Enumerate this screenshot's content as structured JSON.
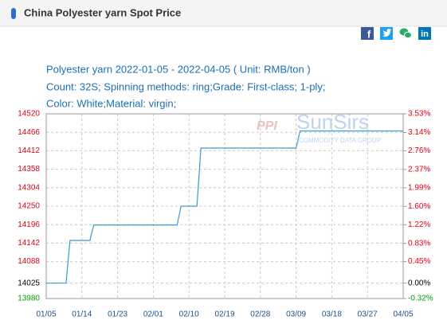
{
  "header": {
    "title": "China Polyester yarn Spot Price",
    "share": [
      "f",
      "in"
    ]
  },
  "watermark": {
    "name": "SunSirs",
    "tagline": "COMMODITY DATA GROUP"
  },
  "chart_data": {
    "type": "line",
    "subtitle": [
      "Polyester yarn 2022-01-05 - 2022-04-05    ( Unit: RMB/ton )",
      "Count: 32S; Spinning methods: ring;Grade: First-class; 1-ply;",
      "Color: White;Material: virgin;"
    ],
    "x": [
      "2022-01-05",
      "2022-01-10",
      "2022-01-11",
      "2022-01-16",
      "2022-01-17",
      "2022-02-07",
      "2022-02-08",
      "2022-02-12",
      "2022-02-13",
      "2022-03-09",
      "2022-03-10",
      "2022-04-05"
    ],
    "values": [
      14025,
      14025,
      14150,
      14150,
      14195,
      14195,
      14250,
      14250,
      14420,
      14420,
      14470,
      14470
    ],
    "color": "#3a9ccb",
    "xlim": [
      "2022-01-05",
      "2022-04-05"
    ],
    "xticks": [
      {
        "value": "2022-01-05",
        "label": "01/05"
      },
      {
        "value": "2022-01-14",
        "label": "01/14"
      },
      {
        "value": "2022-01-23",
        "label": "01/23"
      },
      {
        "value": "2022-02-01",
        "label": "02/01"
      },
      {
        "value": "2022-02-10",
        "label": "02/10"
      },
      {
        "value": "2022-02-19",
        "label": "02/19"
      },
      {
        "value": "2022-02-28",
        "label": "02/28"
      },
      {
        "value": "2022-03-09",
        "label": "03/09"
      },
      {
        "value": "2022-03-18",
        "label": "03/18"
      },
      {
        "value": "2022-03-27",
        "label": "03/27"
      },
      {
        "value": "2022-04-05",
        "label": "04/05"
      }
    ],
    "ylim": [
      13980,
      14520
    ],
    "yticks": [
      14520,
      14466,
      14412,
      14358,
      14304,
      14250,
      14196,
      14142,
      14088,
      14025,
      13980
    ],
    "y2lim": [
      -0.32,
      3.53
    ],
    "y2ticks": [
      {
        "value": 3.53,
        "label": "3.53%"
      },
      {
        "value": 3.14,
        "label": "3.14%"
      },
      {
        "value": 2.76,
        "label": "2.76%"
      },
      {
        "value": 2.37,
        "label": "2.37%"
      },
      {
        "value": 1.99,
        "label": "1.99%"
      },
      {
        "value": 1.6,
        "label": "1.60%"
      },
      {
        "value": 1.22,
        "label": "1.22%"
      },
      {
        "value": 0.83,
        "label": "0.83%"
      },
      {
        "value": 0.45,
        "label": "0.45%"
      },
      {
        "value": 0,
        "label": "0.00%"
      },
      {
        "value": -0.32,
        "label": "-0.32%"
      }
    ],
    "base": 14025,
    "up_color": "#e60012",
    "base_color": "#000000",
    "down_color": "#0a9a0a",
    "grid": true
  }
}
